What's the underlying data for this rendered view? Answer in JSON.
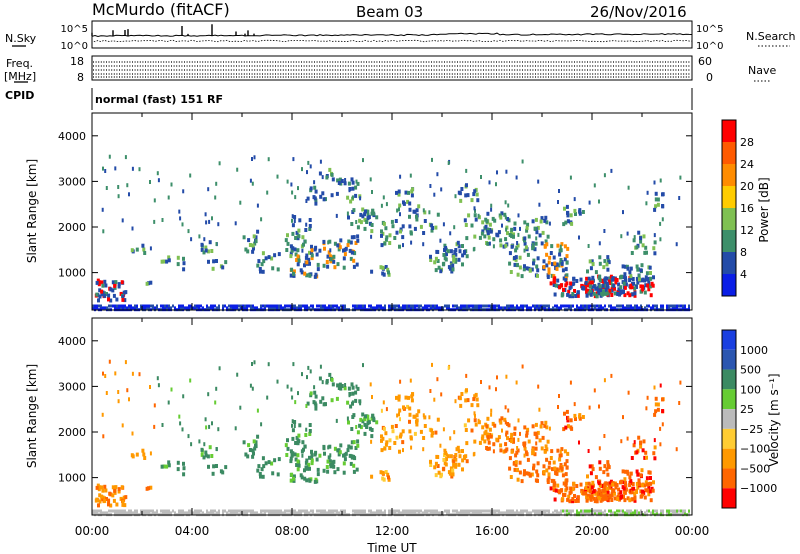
{
  "header": {
    "station": "McMurdo (fitACF)",
    "beam": "Beam 03",
    "date": "26/Nov/2016"
  },
  "top_panels": {
    "nsky_label": "N.Sky",
    "nsearch_label": "N.Search",
    "nsky_ticks": [
      "10^5",
      "10^0"
    ],
    "freq_label_1": "Freq.",
    "freq_label_2": "[MHz]",
    "freq_ticks": [
      "18",
      "8"
    ],
    "nave_label": "Nave",
    "nave_ticks": [
      "60",
      "0"
    ],
    "cpid_label": "CPID",
    "cpid_value": "normal (fast) 151 RF"
  },
  "chart_data": [
    {
      "type": "heatmap",
      "name": "power",
      "ylabel": "Slant Range [km]",
      "xlabel": "",
      "xlim": [
        "00:00",
        "24:00"
      ],
      "ylim": [
        180,
        4500
      ],
      "yticks": [
        1000,
        2000,
        3000,
        4000
      ],
      "colorbar": {
        "label": "Power [dB]",
        "ticks": [
          4,
          8,
          12,
          16,
          20,
          24,
          28
        ],
        "colors": [
          "#0a1ee6",
          "#234ba8",
          "#3d8f6a",
          "#7fc052",
          "#ffcc00",
          "#ff8c00",
          "#ff5a00",
          "#ff0000"
        ]
      }
    },
    {
      "type": "heatmap",
      "name": "velocity",
      "ylabel": "Slant Range [km]",
      "xlabel": "Time UT",
      "xlim": [
        "00:00",
        "24:00"
      ],
      "ylim": [
        180,
        4500
      ],
      "yticks": [
        1000,
        2000,
        3000,
        4000
      ],
      "xticks": [
        "00:00",
        "04:00",
        "08:00",
        "12:00",
        "16:00",
        "20:00",
        "00:00"
      ],
      "colorbar": {
        "label": "Velocity [m s⁻¹]",
        "ticks": [
          "1000",
          "500",
          "100",
          "25",
          "−25",
          "−100",
          "−500",
          "−1000"
        ],
        "colors": [
          "#1a3fe0",
          "#2b56b0",
          "#3b8a62",
          "#66cc33",
          "#bbbbbb",
          "#ffcc33",
          "#ff9900",
          "#ff6600",
          "#ff0000"
        ]
      }
    }
  ]
}
